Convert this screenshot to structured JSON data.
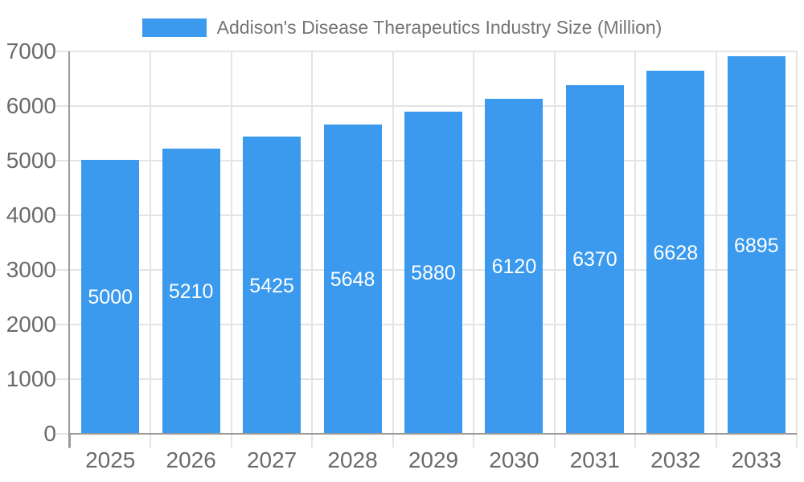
{
  "legend": {
    "label": "Addison's Disease Therapeutics Industry Size (Million)"
  },
  "chart_data": {
    "type": "bar",
    "title": "Addison's Disease Therapeutics Industry Size (Million)",
    "categories": [
      "2025",
      "2026",
      "2027",
      "2028",
      "2029",
      "2030",
      "2031",
      "2032",
      "2033"
    ],
    "values": [
      5000,
      5210,
      5425,
      5648,
      5880,
      6120,
      6370,
      6628,
      6895
    ],
    "value_labels": [
      "5000",
      "5210",
      "5425",
      "5648",
      "5880",
      "6120",
      "6370",
      "6628",
      "6895"
    ],
    "xlabel": "",
    "ylabel": "",
    "ylim": [
      0,
      7000
    ],
    "yticks": [
      0,
      1000,
      2000,
      3000,
      4000,
      5000,
      6000,
      7000
    ],
    "grid": true,
    "legend_position": "top",
    "value_label_position": "center-of-bar",
    "colors": {
      "bar": "#3B9AED",
      "value_label": "#FFFFFF",
      "tick_label": "#6B6B6B",
      "axis": "#9A9A9A",
      "grid": "#E4E4E4",
      "legend_text": "#757575",
      "background": "#FFFFFF"
    }
  }
}
